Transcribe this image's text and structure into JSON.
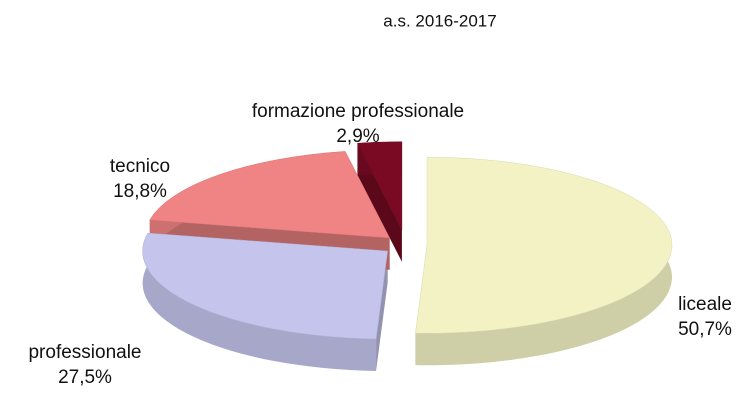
{
  "chart_data": {
    "type": "pie3d",
    "title": "a.s. 2016-2017",
    "categories": [
      "liceale",
      "professionale",
      "tecnico",
      "formazione professionale"
    ],
    "values": [
      50.7,
      27.5,
      18.8,
      2.9
    ],
    "value_labels": [
      "50,7%",
      "27,5%",
      "18,8%",
      "2,9%"
    ],
    "colors": [
      "#f2f2c4",
      "#c4c4ec",
      "#f08484",
      "#7a0a24"
    ]
  }
}
